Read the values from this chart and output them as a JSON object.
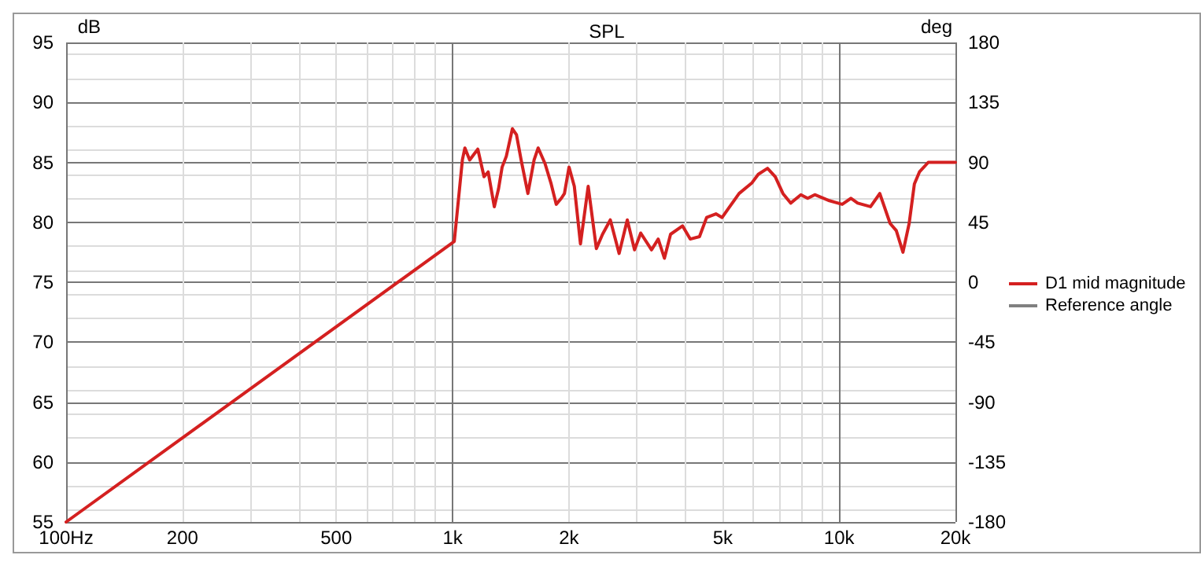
{
  "chart_data": {
    "type": "line",
    "title": "SPL",
    "ylabel": "dB",
    "y2label": "deg",
    "log": "x",
    "grid": true,
    "legend": "right",
    "marker": "none",
    "line_style": "solid",
    "xlim": [
      100,
      20000
    ],
    "xticks": [
      {
        "value": 100,
        "label": "100Hz"
      },
      200,
      500,
      {
        "value": 1000,
        "label": "1k"
      },
      {
        "value": 2000,
        "label": "2k"
      },
      {
        "value": 5000,
        "label": "5k"
      },
      {
        "value": 10000,
        "label": "10k"
      },
      {
        "value": 20000,
        "label": "20k"
      }
    ],
    "ylim": [
      55,
      95
    ],
    "yticks": [
      55,
      60,
      65,
      70,
      75,
      80,
      85,
      90,
      95
    ],
    "y2lim": [
      -180,
      180
    ],
    "y2ticks": [
      -180,
      -135,
      -90,
      -45,
      0,
      45,
      90,
      135,
      180
    ],
    "series": [
      {
        "name": "D1 mid magnitude",
        "color": "#d42020",
        "x": [
          100,
          1010,
          1060,
          1076,
          1107,
          1162,
          1206,
          1236,
          1282,
          1315,
          1343,
          1377,
          1428,
          1463,
          1504,
          1566,
          1625,
          1665,
          1734,
          1799,
          1854,
          1911,
          1947,
          2001,
          2065,
          2142,
          2243,
          2355,
          2443,
          2559,
          2697,
          2831,
          2956,
          3067,
          3272,
          3404,
          3532,
          3664,
          3934,
          4119,
          4353,
          4542,
          4800,
          4981,
          5186,
          5511,
          5954,
          6178,
          6528,
          6837,
          7156,
          7494,
          7963,
          8293,
          8651,
          9437,
          10186,
          10735,
          11169,
          12058,
          12743,
          13552,
          14060,
          14630,
          15180,
          15660,
          16140,
          17010,
          20000
        ],
        "values": [
          55,
          78.4,
          85.2,
          86.2,
          85.2,
          86.1,
          83.8,
          84.2,
          81.3,
          82.8,
          84.6,
          85.5,
          87.8,
          87.3,
          85.2,
          82.4,
          85.2,
          86.2,
          84.9,
          83.2,
          81.5,
          82.0,
          82.4,
          84.6,
          83.0,
          78.2,
          83.0,
          77.8,
          79.0,
          80.2,
          77.4,
          80.2,
          77.7,
          79.1,
          77.7,
          78.6,
          77.0,
          79.0,
          79.7,
          78.6,
          78.8,
          80.4,
          80.7,
          80.4,
          81.2,
          82.4,
          83.3,
          84.0,
          84.5,
          83.8,
          82.4,
          81.6,
          82.3,
          82.0,
          82.3,
          81.8,
          81.5,
          82.0,
          81.6,
          81.3,
          82.4,
          79.9,
          79.3,
          77.5,
          79.9,
          83.2,
          84.2,
          85.0,
          85.0
        ]
      },
      {
        "name": "Reference angle",
        "color": "#808080"
      }
    ]
  }
}
